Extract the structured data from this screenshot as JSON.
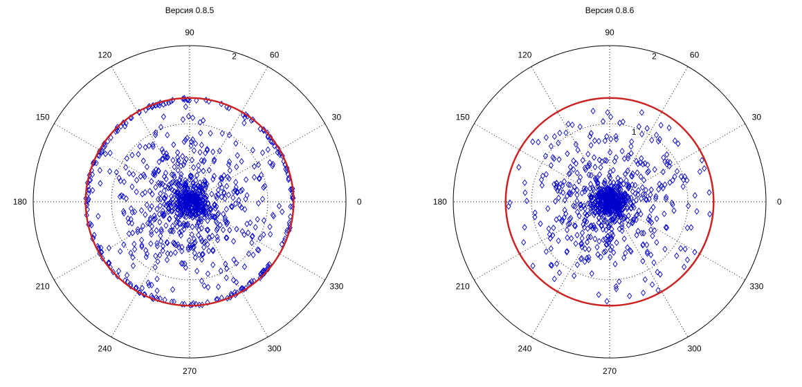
{
  "chart_data": [
    {
      "type": "scatter",
      "coordinate_system": "polar",
      "title": "Версия 0.8.5",
      "rlim": [
        0,
        2
      ],
      "r_tick_labels": [
        "2"
      ],
      "theta_tick_labels": [
        "0",
        "30",
        "60",
        "90",
        "120",
        "150",
        "180",
        "210",
        "240",
        "270",
        "300",
        "330"
      ],
      "grid": true,
      "marker": "diamond",
      "marker_color": "#0000cc",
      "reference_circle": {
        "r": 1.33,
        "color": "#cc2222"
      },
      "distribution": "dense core near the center with many points spread out to the red circle and a ring of points lying on it",
      "points": []
    },
    {
      "type": "scatter",
      "coordinate_system": "polar",
      "title": "Версия 0.8.6",
      "rlim": [
        0,
        2
      ],
      "r_tick_labels": [
        "1",
        "2"
      ],
      "theta_tick_labels": [
        "0",
        "30",
        "60",
        "90",
        "120",
        "150",
        "180",
        "210",
        "240",
        "270",
        "300",
        "330"
      ],
      "grid": true,
      "marker": "diamond",
      "marker_color": "#0000cc",
      "reference_circle": {
        "r": 1.33,
        "color": "#cc2222"
      },
      "distribution": "dense core near the center, points spread inside the red circle with none on it",
      "points": []
    }
  ]
}
